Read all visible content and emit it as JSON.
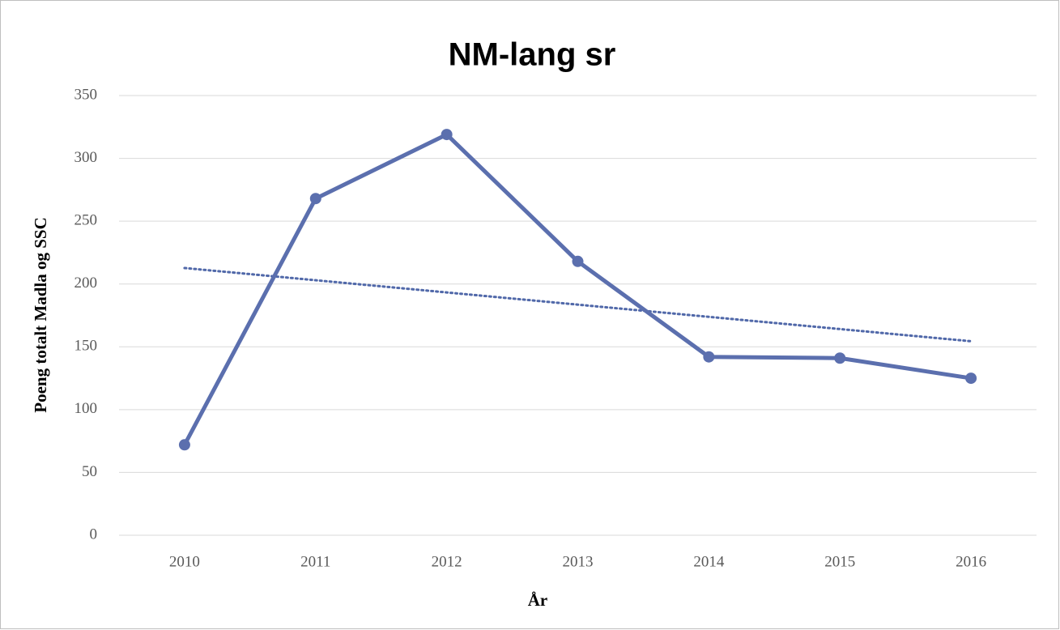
{
  "chart_data": {
    "type": "line",
    "title": "NM-lang sr",
    "x_label": "År",
    "y_label": "Poeng totalt Madla og SSC",
    "categories": [
      "2010",
      "2011",
      "2012",
      "2013",
      "2014",
      "2015",
      "2016"
    ],
    "series": [
      {
        "color": "#5b6fae",
        "values": [
          72,
          268,
          319,
          218,
          142,
          141,
          125
        ]
      }
    ],
    "trendline": "linear",
    "trendline_color": "#5068a9",
    "ylim": [
      0,
      350
    ],
    "yticks": [
      0,
      50,
      100,
      150,
      200,
      250,
      300,
      350
    ],
    "grid": true
  }
}
